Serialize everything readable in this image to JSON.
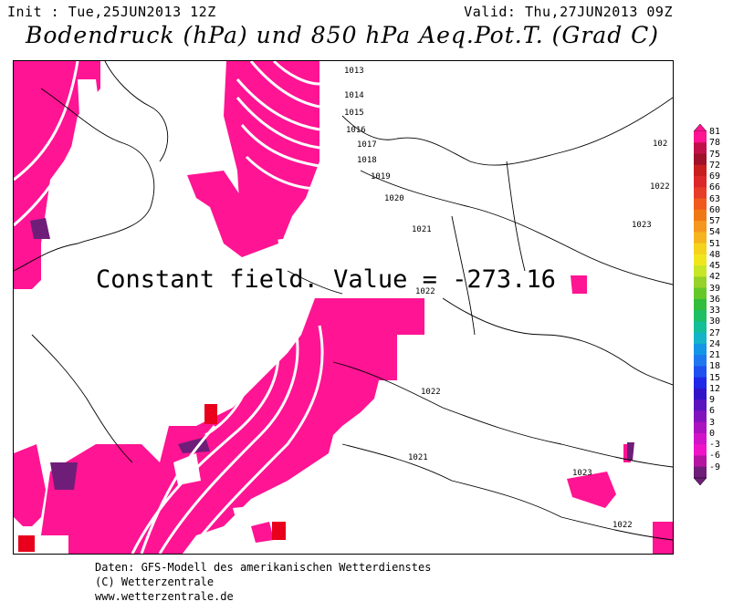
{
  "header": {
    "init": "Init : Tue,25JUN2013 12Z",
    "valid": "Valid: Thu,27JUN2013 09Z",
    "title": "Bodendruck (hPa) und 850 hPa Aeq.Pot.T. (Grad C)"
  },
  "map": {
    "overlay_text": "Constant field.  Value = -273.16",
    "isobars": [
      "1013",
      "1014",
      "1015",
      "1016",
      "1017",
      "1018",
      "1019",
      "1020",
      "1021",
      "1022",
      "1022",
      "1021",
      "1023",
      "1022",
      "102",
      "1022",
      "1023"
    ]
  },
  "legend": {
    "labels": [
      "81",
      "78",
      "75",
      "72",
      "69",
      "66",
      "63",
      "60",
      "57",
      "54",
      "51",
      "48",
      "45",
      "42",
      "39",
      "36",
      "33",
      "30",
      "27",
      "24",
      "21",
      "18",
      "15",
      "12",
      "9",
      "6",
      "3",
      "0",
      "-3",
      "-6",
      "-9"
    ],
    "colors": [
      "#ff1493",
      "#c0104a",
      "#a0102a",
      "#c81e1e",
      "#dc2828",
      "#e63c28",
      "#f05a1e",
      "#f07814",
      "#f5961e",
      "#f5b41e",
      "#f5d21e",
      "#f0e61e",
      "#c8e628",
      "#96d228",
      "#64c828",
      "#32be3c",
      "#1ebe64",
      "#14be96",
      "#14b4c8",
      "#1496e6",
      "#1e78f0",
      "#1e50f0",
      "#1e28e6",
      "#3214c8",
      "#5a14be",
      "#8214be",
      "#aa14be",
      "#d214c8",
      "#f014c8",
      "#b414a0",
      "#6e1e78"
    ]
  },
  "footer": {
    "line1": "Daten: GFS-Modell des amerikanischen Wetterdienstes",
    "line2": "(C) Wetterzentrale",
    "line3": "www.wetterzentrale.de"
  }
}
